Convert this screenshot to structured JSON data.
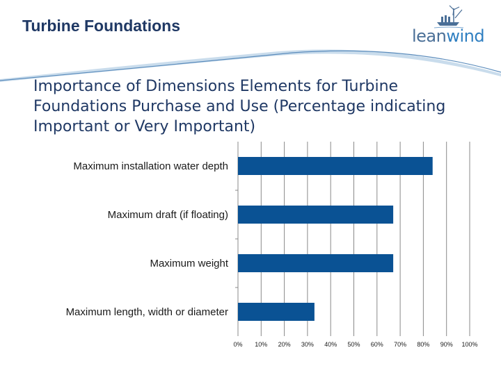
{
  "header": {
    "title": "Turbine Foundations",
    "logo_text_a": "lean",
    "logo_text_b": "wind"
  },
  "colors": {
    "bar": "#0a5294",
    "title": "#1f3864",
    "grid": "#888888"
  },
  "chart_data": {
    "type": "bar",
    "orientation": "horizontal",
    "title": "Importance of Dimensions Elements for Turbine Foundations Purchase and Use (Percentage indicating Important or Very Important)",
    "categories": [
      "Maximum installation water depth",
      "Maximum draft (if floating)",
      "Maximum weight",
      "Maximum length, width or diameter"
    ],
    "values": [
      84,
      67,
      67,
      33
    ],
    "xlim": [
      0,
      100
    ],
    "xticks": [
      "0%",
      "10%",
      "20%",
      "30%",
      "40%",
      "50%",
      "60%",
      "70%",
      "80%",
      "90%",
      "100%"
    ],
    "grid": true,
    "legend": "none"
  }
}
